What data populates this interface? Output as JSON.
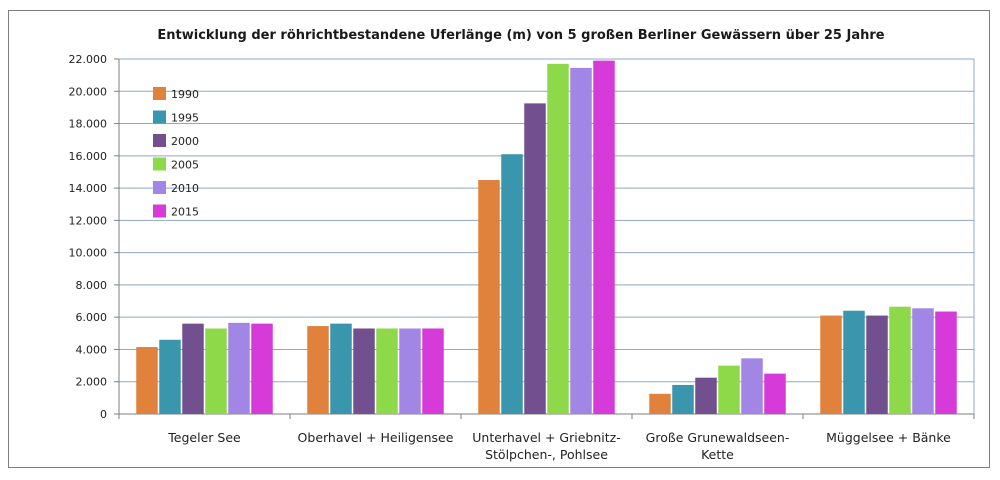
{
  "chart_data": {
    "type": "bar",
    "title": "Entwicklung der röhrichtbestandene Uferlänge (m) von 5 großen Berliner Gewässern über 25 Jahre",
    "xlabel": "",
    "ylabel": "",
    "ylim": [
      0,
      22000
    ],
    "y_ticks": [
      {
        "value": 0,
        "label": "0"
      },
      {
        "value": 2000,
        "label": "2.000"
      },
      {
        "value": 4000,
        "label": "4.000"
      },
      {
        "value": 6000,
        "label": "6.000"
      },
      {
        "value": 8000,
        "label": "8.000"
      },
      {
        "value": 10000,
        "label": "10.000"
      },
      {
        "value": 12000,
        "label": "12.000"
      },
      {
        "value": 14000,
        "label": "14.000"
      },
      {
        "value": 16000,
        "label": "16.000"
      },
      {
        "value": 18000,
        "label": "18.000"
      },
      {
        "value": 20000,
        "label": "20.000"
      },
      {
        "value": 22000,
        "label": "22.000"
      }
    ],
    "grid": true,
    "legend_position": "top-left",
    "categories": [
      [
        "Tegeler See"
      ],
      [
        "Oberhavel + Heiligensee"
      ],
      [
        "Unterhavel + Griebnitz-",
        "Stölpchen-, Pohlsee"
      ],
      [
        "Große Grunewaldseen-",
        "Kette"
      ],
      [
        "Müggelsee + Bänke"
      ]
    ],
    "series": [
      {
        "name": "1990",
        "color": "#e0823b",
        "values": [
          4150,
          5450,
          14500,
          1250,
          6100
        ]
      },
      {
        "name": "1995",
        "color": "#3a96ad",
        "values": [
          4600,
          5600,
          16100,
          1800,
          6400
        ]
      },
      {
        "name": "2000",
        "color": "#72508f",
        "values": [
          5600,
          5300,
          19250,
          2250,
          6100
        ]
      },
      {
        "name": "2005",
        "color": "#8ed94a",
        "values": [
          5300,
          5300,
          21700,
          3000,
          6650
        ]
      },
      {
        "name": "2010",
        "color": "#a286e6",
        "values": [
          5650,
          5300,
          21450,
          3450,
          6550
        ]
      },
      {
        "name": "2015",
        "color": "#d63ad9",
        "values": [
          5600,
          5300,
          21900,
          2500,
          6350
        ]
      }
    ]
  }
}
